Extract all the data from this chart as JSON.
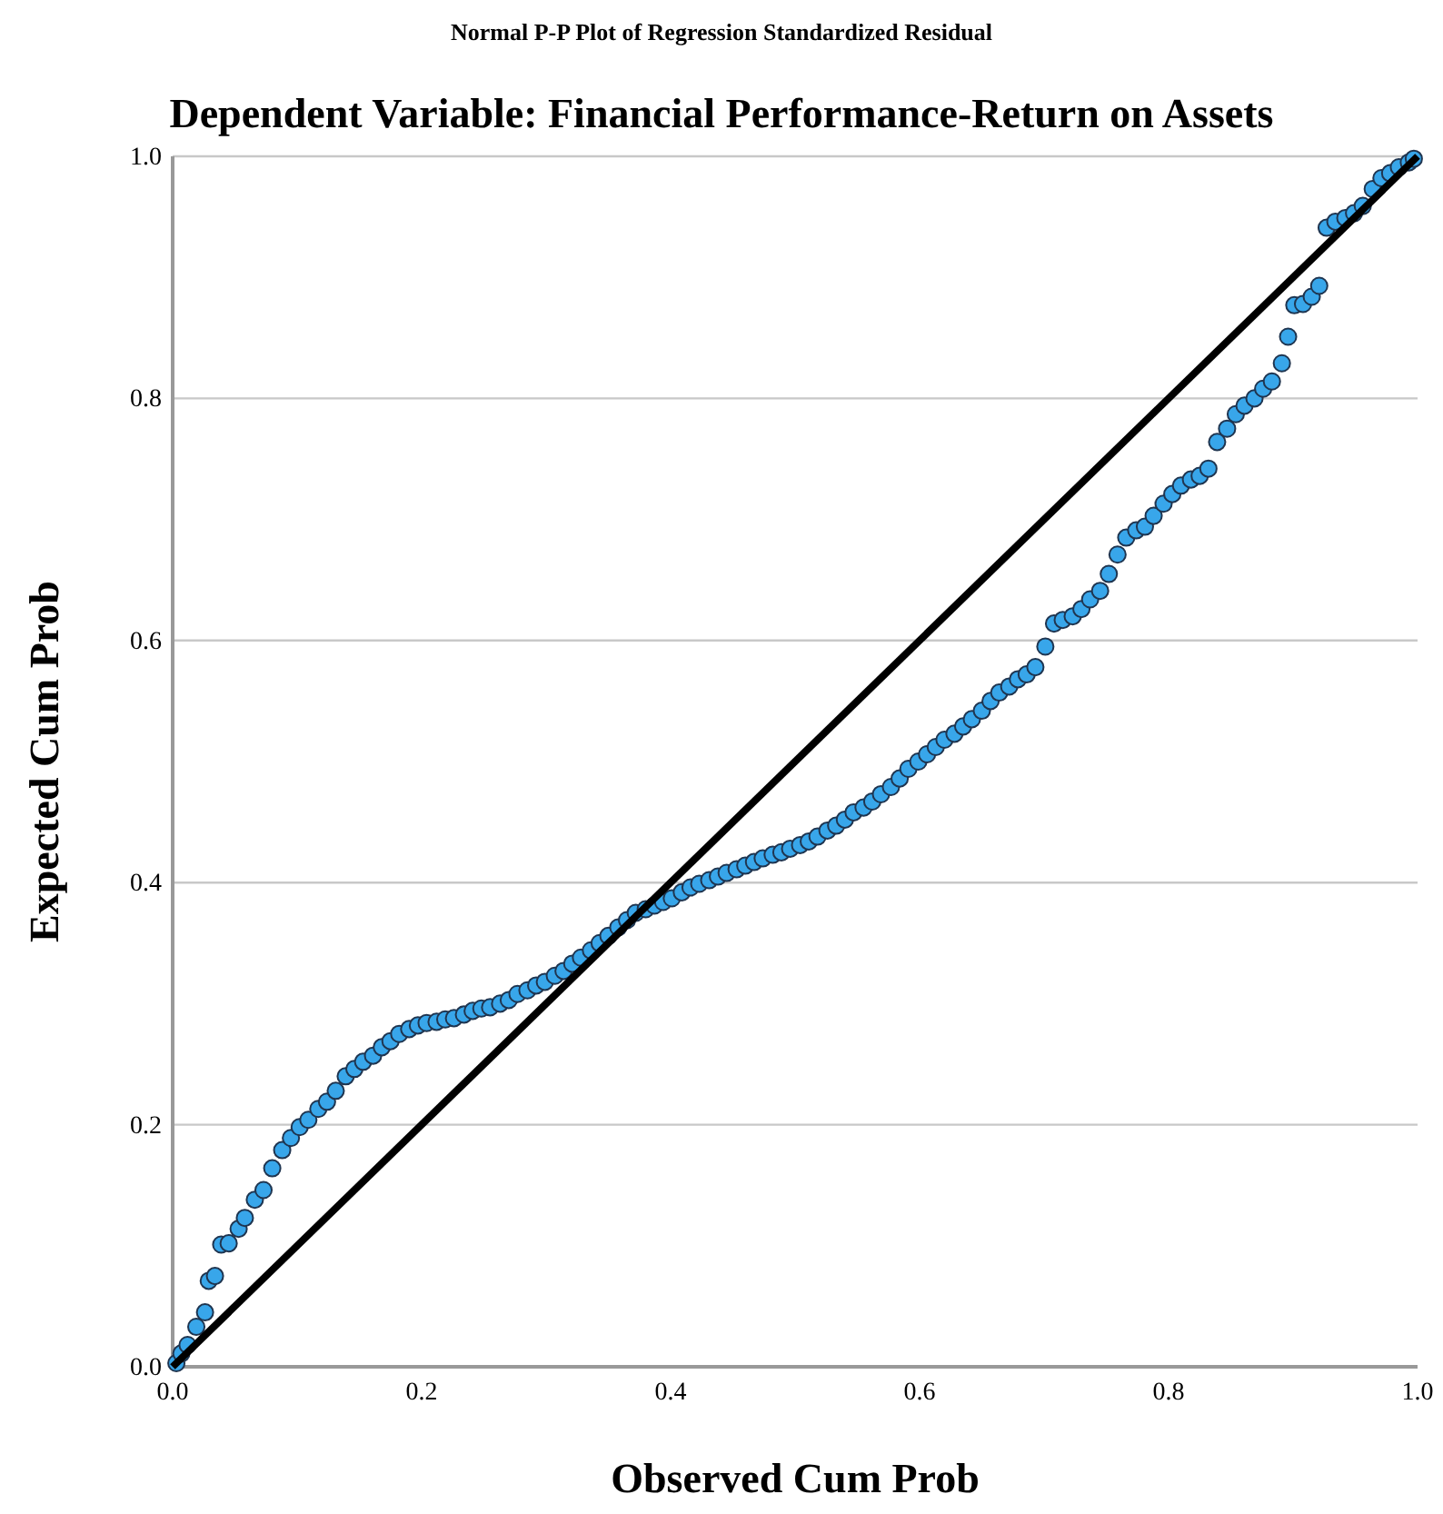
{
  "chart_data": {
    "type": "scatter",
    "title": "Normal P-P Plot of Regression Standardized Residual",
    "subtitle": "Dependent Variable: Financial Performance-Return on Assets",
    "xlabel": "Observed Cum Prob",
    "ylabel": "Expected Cum Prob",
    "xlim": [
      0,
      1
    ],
    "ylim": [
      0,
      1
    ],
    "xticks": [
      {
        "value": 0,
        "label": "0.0"
      },
      {
        "value": 0.2,
        "label": "0.2"
      },
      {
        "value": 0.4,
        "label": "0.4"
      },
      {
        "value": 0.6,
        "label": "0.6"
      },
      {
        "value": 0.8,
        "label": "0.8"
      },
      {
        "value": 1,
        "label": "1.0"
      }
    ],
    "yticks": [
      {
        "value": 0,
        "label": "0.0"
      },
      {
        "value": 0.2,
        "label": "0.2"
      },
      {
        "value": 0.4,
        "label": "0.4"
      },
      {
        "value": 0.6,
        "label": "0.6"
      },
      {
        "value": 0.8,
        "label": "0.8"
      },
      {
        "value": 1,
        "label": "1.0"
      }
    ],
    "grid": "y",
    "series": [
      {
        "marker": "circle",
        "color": "#38a6ea",
        "x": [
          0.003,
          0.007,
          0.012,
          0.019,
          0.026,
          0.029,
          0.034,
          0.039,
          0.045,
          0.053,
          0.058,
          0.066,
          0.073,
          0.08,
          0.088,
          0.095,
          0.102,
          0.109,
          0.117,
          0.124,
          0.131,
          0.139,
          0.146,
          0.153,
          0.161,
          0.168,
          0.175,
          0.182,
          0.19,
          0.197,
          0.204,
          0.212,
          0.219,
          0.226,
          0.234,
          0.241,
          0.248,
          0.255,
          0.263,
          0.27,
          0.277,
          0.285,
          0.292,
          0.299,
          0.307,
          0.314,
          0.321,
          0.328,
          0.336,
          0.343,
          0.35,
          0.358,
          0.365,
          0.372,
          0.38,
          0.387,
          0.394,
          0.401,
          0.409,
          0.416,
          0.423,
          0.431,
          0.438,
          0.445,
          0.453,
          0.46,
          0.467,
          0.474,
          0.482,
          0.489,
          0.496,
          0.504,
          0.511,
          0.518,
          0.526,
          0.533,
          0.54,
          0.547,
          0.555,
          0.562,
          0.569,
          0.577,
          0.584,
          0.591,
          0.599,
          0.606,
          0.613,
          0.62,
          0.628,
          0.635,
          0.642,
          0.65,
          0.657,
          0.664,
          0.672,
          0.679,
          0.686,
          0.693,
          0.701,
          0.708,
          0.715,
          0.723,
          0.73,
          0.737,
          0.745,
          0.752,
          0.759,
          0.766,
          0.774,
          0.781,
          0.788,
          0.796,
          0.803,
          0.81,
          0.818,
          0.825,
          0.832,
          0.839,
          0.847,
          0.854,
          0.861,
          0.869,
          0.876,
          0.883,
          0.891,
          0.896,
          0.901,
          0.908,
          0.915,
          0.921,
          0.927,
          0.934,
          0.942,
          0.949,
          0.956,
          0.964,
          0.971,
          0.978,
          0.985,
          0.993,
          0.997
        ],
        "values": [
          0.003,
          0.011,
          0.018,
          0.033,
          0.045,
          0.071,
          0.075,
          0.101,
          0.102,
          0.114,
          0.123,
          0.138,
          0.146,
          0.164,
          0.179,
          0.189,
          0.198,
          0.204,
          0.213,
          0.219,
          0.228,
          0.24,
          0.246,
          0.252,
          0.257,
          0.264,
          0.269,
          0.275,
          0.279,
          0.282,
          0.284,
          0.285,
          0.287,
          0.288,
          0.291,
          0.294,
          0.296,
          0.297,
          0.3,
          0.303,
          0.308,
          0.311,
          0.315,
          0.318,
          0.323,
          0.327,
          0.333,
          0.338,
          0.344,
          0.35,
          0.356,
          0.363,
          0.369,
          0.375,
          0.378,
          0.381,
          0.384,
          0.387,
          0.392,
          0.396,
          0.399,
          0.402,
          0.405,
          0.408,
          0.411,
          0.414,
          0.417,
          0.42,
          0.423,
          0.425,
          0.428,
          0.431,
          0.434,
          0.438,
          0.443,
          0.447,
          0.452,
          0.458,
          0.462,
          0.467,
          0.473,
          0.479,
          0.486,
          0.494,
          0.5,
          0.506,
          0.512,
          0.518,
          0.523,
          0.529,
          0.535,
          0.542,
          0.55,
          0.557,
          0.562,
          0.568,
          0.572,
          0.578,
          0.595,
          0.614,
          0.617,
          0.62,
          0.626,
          0.634,
          0.641,
          0.655,
          0.671,
          0.685,
          0.691,
          0.694,
          0.703,
          0.713,
          0.721,
          0.728,
          0.733,
          0.736,
          0.742,
          0.764,
          0.775,
          0.787,
          0.794,
          0.8,
          0.808,
          0.814,
          0.829,
          0.851,
          0.877,
          0.878,
          0.884,
          0.893,
          0.941,
          0.946,
          0.949,
          0.953,
          0.959,
          0.973,
          0.982,
          0.986,
          0.991,
          0.995,
          0.998
        ]
      },
      {
        "type": "line",
        "marker": "none",
        "color": "#000000",
        "x": [
          0,
          1
        ],
        "values": [
          0,
          1
        ]
      }
    ]
  }
}
